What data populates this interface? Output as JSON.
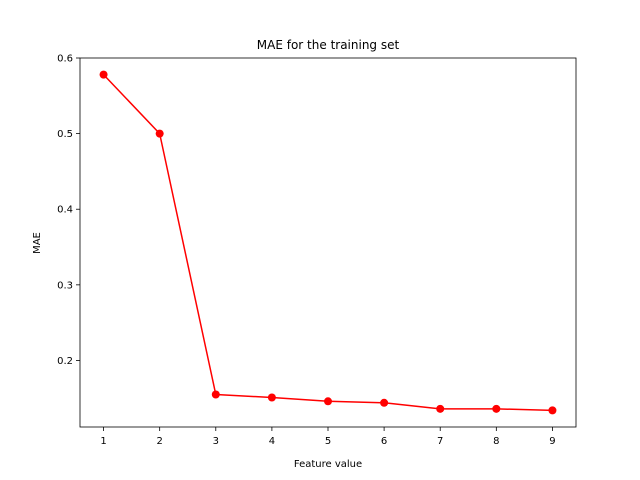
{
  "chart_data": {
    "type": "line",
    "title": "MAE for the training set",
    "xlabel": "Feature value",
    "ylabel": "MAE",
    "x": [
      1,
      2,
      3,
      4,
      5,
      6,
      7,
      8,
      9
    ],
    "series": [
      {
        "values": [
          0.578,
          0.5,
          0.155,
          0.151,
          0.146,
          0.144,
          0.136,
          0.136,
          0.134
        ],
        "color": "#ff0000",
        "marker": "circle"
      }
    ],
    "xlim": [
      0.58,
      9.42
    ],
    "ylim": [
      0.112,
      0.6
    ],
    "xticks": [
      1,
      2,
      3,
      4,
      5,
      6,
      7,
      8,
      9
    ],
    "yticks": [
      0.2,
      0.3,
      0.4,
      0.5,
      0.6
    ],
    "grid": false,
    "legend": false
  }
}
